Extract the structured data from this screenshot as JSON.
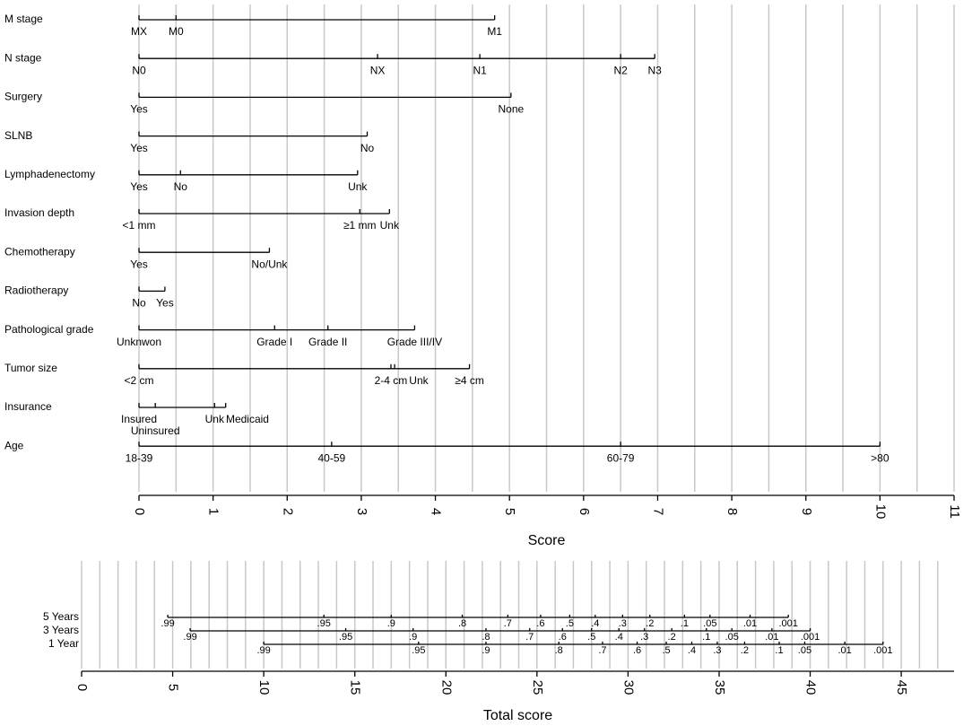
{
  "chart_data": [
    {
      "type": "nomogram",
      "xlabel": "Score",
      "xlim": [
        0,
        11
      ],
      "xticks": [
        0,
        1,
        2,
        3,
        4,
        5,
        6,
        7,
        8,
        9,
        10,
        11
      ],
      "grid": true,
      "grid_step": 0.5,
      "variables": [
        {
          "name": "M stage",
          "points": [
            {
              "label": "MX",
              "score": 0
            },
            {
              "label": "M0",
              "score": 0.5
            },
            {
              "label": "M1",
              "score": 4.8
            }
          ]
        },
        {
          "name": "N stage",
          "points": [
            {
              "label": "N0",
              "score": 0
            },
            {
              "label": "NX",
              "score": 3.22
            },
            {
              "label": "N1",
              "score": 4.6
            },
            {
              "label": "N2",
              "score": 6.5
            },
            {
              "label": "N3",
              "score": 6.96
            }
          ]
        },
        {
          "name": "Surgery",
          "points": [
            {
              "label": "Yes",
              "score": 0
            },
            {
              "label": "None",
              "score": 5.02
            }
          ]
        },
        {
          "name": "SLNB",
          "points": [
            {
              "label": "Yes",
              "score": 0
            },
            {
              "label": "No",
              "score": 3.08
            }
          ]
        },
        {
          "name": "Lymphadenectomy",
          "points": [
            {
              "label": "Yes",
              "score": 0
            },
            {
              "label": "No",
              "score": 0.56
            },
            {
              "label": "Unk",
              "score": 2.95
            }
          ]
        },
        {
          "name": "Invasion depth",
          "points": [
            {
              "label": "<1 mm",
              "score": 0
            },
            {
              "label": "≥1 mm",
              "score": 2.98
            },
            {
              "label": "Unk",
              "score": 3.38
            }
          ]
        },
        {
          "name": "Chemotherapy",
          "points": [
            {
              "label": "Yes",
              "score": 0
            },
            {
              "label": "No/Unk",
              "score": 1.76
            }
          ]
        },
        {
          "name": "Radiotherapy",
          "points": [
            {
              "label": "No",
              "score": 0
            },
            {
              "label": "Yes",
              "score": 0.35
            }
          ]
        },
        {
          "name": "Pathological grade",
          "points": [
            {
              "label": "Unknwon",
              "score": 0
            },
            {
              "label": "Grade I",
              "score": 1.83
            },
            {
              "label": "Grade II",
              "score": 2.55
            },
            {
              "label": "Grade III/IV",
              "score": 3.72
            }
          ]
        },
        {
          "name": "Tumor size",
          "points": [
            {
              "label": "<2 cm",
              "score": 0
            },
            {
              "label": "2-4 cm",
              "score": 3.4
            },
            {
              "label": "Unk",
              "score": 3.45
            },
            {
              "label": "≥4 cm",
              "score": 4.46
            }
          ]
        },
        {
          "name": "Insurance",
          "points": [
            {
              "label": "Insured",
              "score": 0
            },
            {
              "label": "Uninsured",
              "score": 0.22
            },
            {
              "label": "Unk",
              "score": 1.02
            },
            {
              "label": "Medicaid",
              "score": 1.17
            }
          ]
        },
        {
          "name": "Age",
          "points": [
            {
              "label": "18-39",
              "score": 0
            },
            {
              "label": "40-59",
              "score": 2.6
            },
            {
              "label": "60-79",
              "score": 6.5
            },
            {
              "label": ">80",
              "score": 10
            }
          ]
        }
      ]
    },
    {
      "type": "nomogram",
      "xlabel": "Total score",
      "xlim": [
        0,
        47.9
      ],
      "xticks": [
        0,
        5,
        10,
        15,
        20,
        25,
        30,
        35,
        40,
        45
      ],
      "grid": true,
      "grid_step": 1,
      "variables": [
        {
          "name": "5 Years",
          "points": [
            {
              "label": ".99",
              "score": 4.73
            },
            {
              "label": ".95",
              "score": 13.3
            },
            {
              "label": ".9",
              "score": 17
            },
            {
              "label": ".8",
              "score": 20.9
            },
            {
              "label": ".7",
              "score": 23.4
            },
            {
              "label": ".6",
              "score": 25.2
            },
            {
              "label": ".5",
              "score": 26.8
            },
            {
              "label": ".4",
              "score": 28.2
            },
            {
              "label": ".3",
              "score": 29.7
            },
            {
              "label": ".2",
              "score": 31.2
            },
            {
              "label": ".1",
              "score": 33.1
            },
            {
              "label": ".05",
              "score": 34.5
            },
            {
              "label": ".01",
              "score": 36.7
            },
            {
              "label": ".001",
              "score": 38.8
            }
          ]
        },
        {
          "name": "3 Years",
          "points": [
            {
              "label": ".99",
              "score": 5.96
            },
            {
              "label": ".95",
              "score": 14.5
            },
            {
              "label": ".9",
              "score": 18.2
            },
            {
              "label": ".8",
              "score": 22.2
            },
            {
              "label": ".7",
              "score": 24.6
            },
            {
              "label": ".6",
              "score": 26.4
            },
            {
              "label": ".5",
              "score": 28
            },
            {
              "label": ".4",
              "score": 29.5
            },
            {
              "label": ".3",
              "score": 30.9
            },
            {
              "label": ".2",
              "score": 32.4
            },
            {
              "label": ".1",
              "score": 34.3
            },
            {
              "label": ".05",
              "score": 35.7
            },
            {
              "label": ".01",
              "score": 37.9
            },
            {
              "label": ".001",
              "score": 40
            }
          ]
        },
        {
          "name": "1 Year",
          "points": [
            {
              "label": ".99",
              "score": 10
            },
            {
              "label": ".95",
              "score": 18.5
            },
            {
              "label": ".9",
              "score": 22.2
            },
            {
              "label": ".8",
              "score": 26.2
            },
            {
              "label": ".7",
              "score": 28.6
            },
            {
              "label": ".6",
              "score": 30.5
            },
            {
              "label": ".5",
              "score": 32.1
            },
            {
              "label": ".4",
              "score": 33.5
            },
            {
              "label": ".3",
              "score": 34.9
            },
            {
              "label": ".2",
              "score": 36.4
            },
            {
              "label": ".1",
              "score": 38.3
            },
            {
              "label": ".05",
              "score": 39.7
            },
            {
              "label": ".01",
              "score": 41.9
            },
            {
              "label": ".001",
              "score": 44
            }
          ]
        }
      ]
    }
  ]
}
